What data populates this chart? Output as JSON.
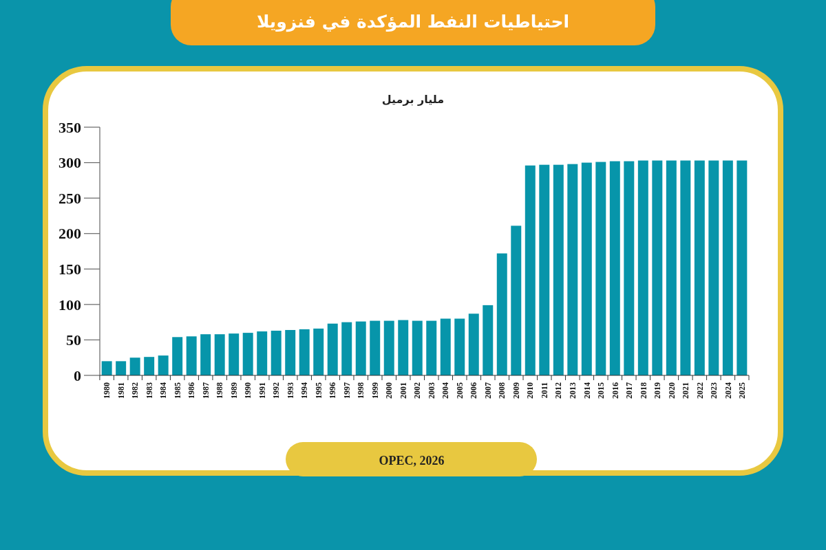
{
  "chart_data": {
    "type": "bar",
    "title": "احتياطيات النفط المؤكدة في فنزويلا",
    "ylabel": "مليار برميل",
    "categories": [
      "1980",
      "1981",
      "1982",
      "1983",
      "1984",
      "1985",
      "1986",
      "1987",
      "1988",
      "1989",
      "1990",
      "1991",
      "1992",
      "1993",
      "1994",
      "1995",
      "1996",
      "1997",
      "1998",
      "1999",
      "2000",
      "2001",
      "2002",
      "2003",
      "2004",
      "2005",
      "2006",
      "2007",
      "2008",
      "2009",
      "2010",
      "2011",
      "2012",
      "2013",
      "2014",
      "2015",
      "2016",
      "2017",
      "2018",
      "2019",
      "2020",
      "2021",
      "2022",
      "2023",
      "2024",
      "2025"
    ],
    "values": [
      20,
      20,
      25,
      26,
      28,
      54,
      55,
      58,
      58,
      59,
      60,
      62,
      63,
      64,
      65,
      66,
      73,
      75,
      76,
      77,
      77,
      78,
      77,
      77,
      80,
      80,
      87,
      99,
      172,
      211,
      296,
      297,
      297,
      298,
      300,
      301,
      302,
      302,
      303,
      303,
      303,
      303,
      303,
      303,
      303,
      303
    ],
    "color": "#0795aa",
    "ylim": [
      0,
      350
    ],
    "yticks": [
      0,
      50,
      100,
      150,
      200,
      250,
      300,
      350
    ],
    "grid": false,
    "annotations": [
      "OPEC, 2026"
    ]
  }
}
